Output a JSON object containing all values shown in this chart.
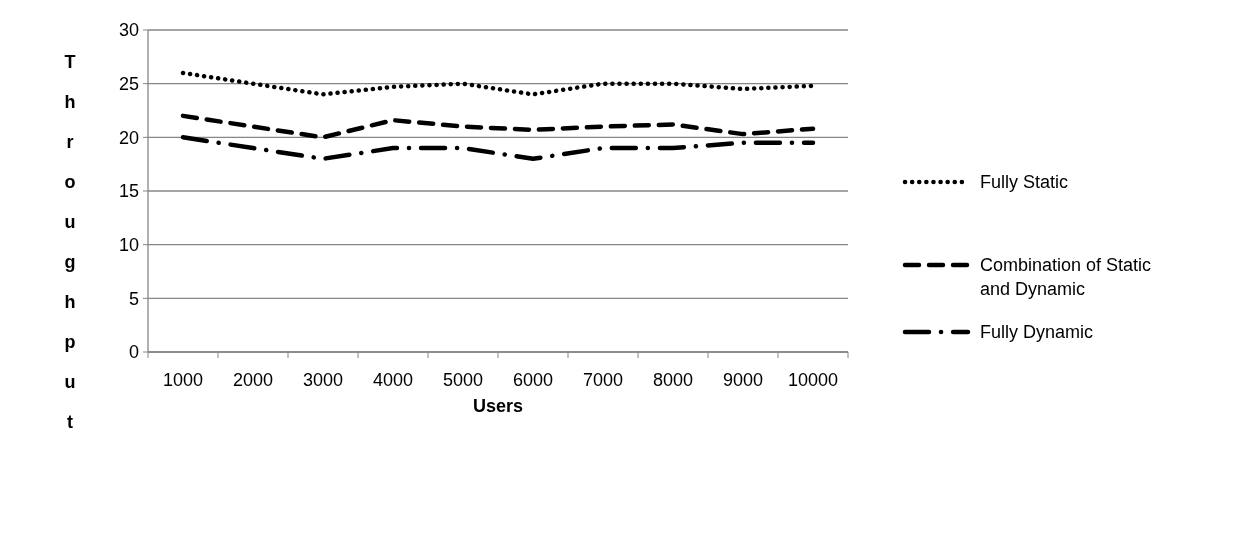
{
  "chart_data": {
    "type": "line",
    "xlabel": "Users",
    "ylabel": "Throughput",
    "categories": [
      "1000",
      "2000",
      "3000",
      "4000",
      "5000",
      "6000",
      "7000",
      "8000",
      "9000",
      "10000"
    ],
    "series": [
      {
        "name": "Fully Static",
        "color": "#000000",
        "line_style": "dotted",
        "values": [
          26,
          25,
          24,
          24.7,
          25,
          24,
          25,
          25,
          24.5,
          24.8
        ]
      },
      {
        "name": "Combination of Static and Dynamic",
        "color": "#000000",
        "line_style": "dashed",
        "values": [
          22,
          21,
          20,
          21.6,
          21,
          20.7,
          21,
          21.2,
          20.3,
          20.8
        ]
      },
      {
        "name": "Fully Dynamic",
        "color": "#000000",
        "line_style": "dashdot",
        "values": [
          20,
          19,
          18,
          19,
          19,
          18,
          19,
          19,
          19.5,
          19.5
        ]
      }
    ],
    "ylim": [
      0,
      30
    ],
    "yticks": [
      0,
      5,
      10,
      15,
      20,
      25,
      30
    ],
    "grid": "y",
    "legend": "right"
  }
}
